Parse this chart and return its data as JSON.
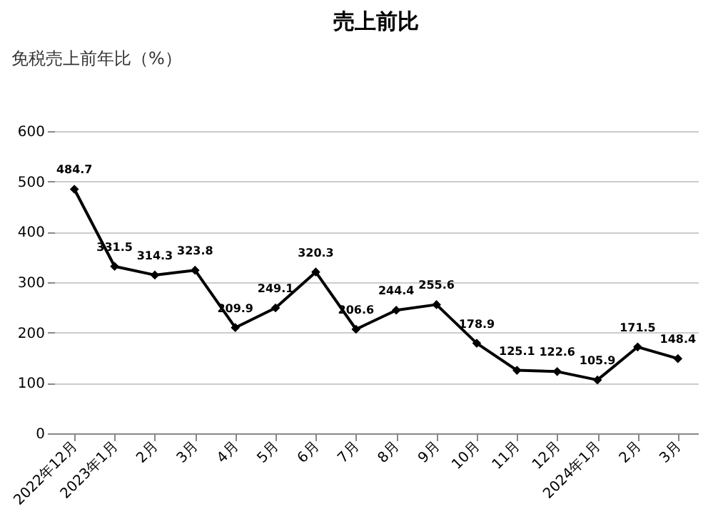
{
  "chart_data": {
    "type": "line",
    "title": "売上前比",
    "annotations": [
      "免税売上前年比（%）"
    ],
    "categories": [
      "2022年12月",
      "2023年1月",
      "2月",
      "3月",
      "4月",
      "5月",
      "6月",
      "7月",
      "8月",
      "9月",
      "10月",
      "11月",
      "12月",
      "2024年1月",
      "2月",
      "3月"
    ],
    "series": [
      {
        "color": "#000000",
        "values": [
          484.7,
          331.5,
          314.3,
          323.8,
          209.9,
          249.1,
          320.3,
          206.6,
          244.4,
          255.6,
          178.9,
          125.1,
          122.6,
          105.9,
          171.5,
          148.4
        ]
      }
    ],
    "ylim": [
      0,
      600
    ],
    "yticks": [
      0,
      100,
      200,
      300,
      400,
      500,
      600
    ],
    "grid": "y",
    "marker": "diamond",
    "line_style": "solid",
    "data_labels": true
  }
}
